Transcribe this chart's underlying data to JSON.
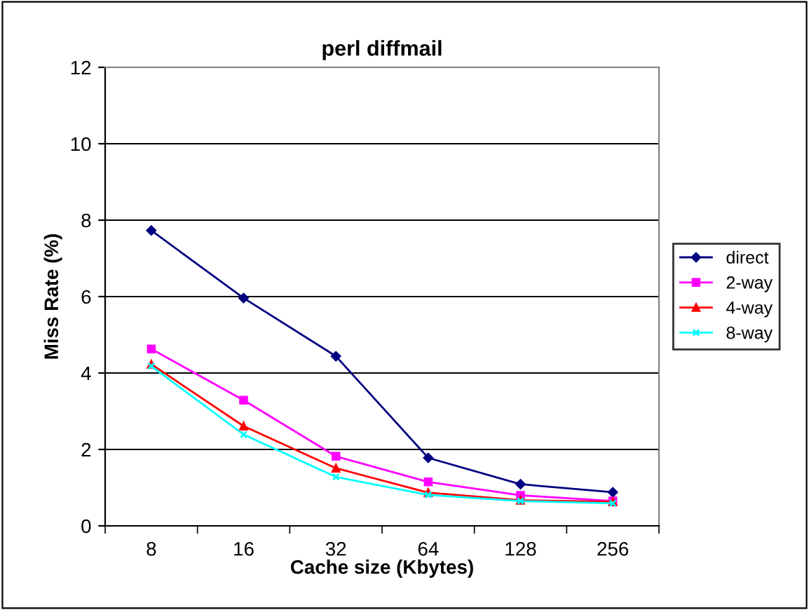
{
  "chart_data": {
    "type": "line",
    "title": "perl diffmail",
    "xlabel": "Cache size (Kbytes)",
    "ylabel": "Miss Rate (%)",
    "categories": [
      "8",
      "16",
      "32",
      "64",
      "128",
      "256"
    ],
    "ylim": [
      0,
      12
    ],
    "yticks": [
      0,
      2,
      4,
      6,
      8,
      10,
      12
    ],
    "grid": "y",
    "legend": "right",
    "line_style": "solid",
    "series": [
      {
        "name": "direct",
        "color": "#000080",
        "marker": "diamond",
        "values": [
          7.73,
          5.96,
          4.44,
          1.78,
          1.09,
          0.88
        ]
      },
      {
        "name": "2-way",
        "color": "#ff00ff",
        "marker": "square",
        "values": [
          4.63,
          3.29,
          1.82,
          1.15,
          0.8,
          0.65
        ]
      },
      {
        "name": "4-way",
        "color": "#ff0000",
        "marker": "triangle",
        "values": [
          4.23,
          2.61,
          1.51,
          0.87,
          0.67,
          0.63
        ]
      },
      {
        "name": "8-way",
        "color": "#00ffff",
        "marker": "cross",
        "values": [
          4.18,
          2.39,
          1.28,
          0.81,
          0.65,
          0.59
        ]
      }
    ]
  }
}
